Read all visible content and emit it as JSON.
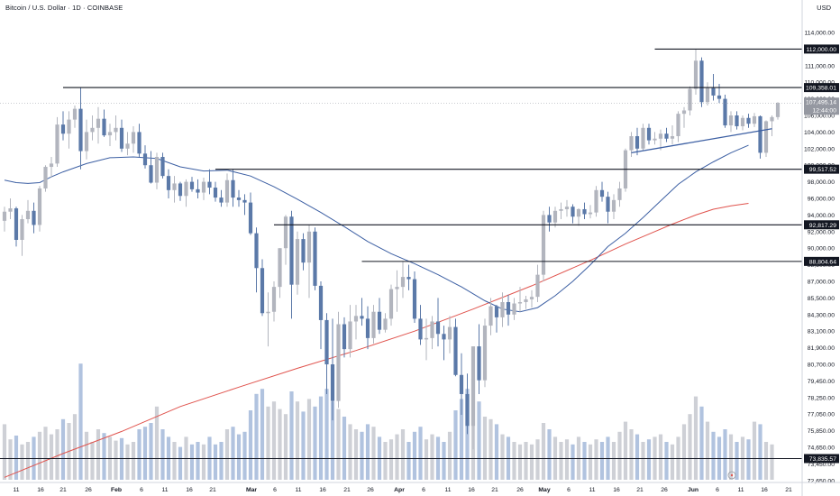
{
  "header": {
    "symbol": "Bitcoin / U.S. Dollar · 1D · COINBASE",
    "currency": "USD"
  },
  "colors": {
    "up": "#b2b5be",
    "down": "#5b79a8",
    "sma_blue": "#3c5fa3",
    "sma_red": "#e0534d",
    "level": "#131722",
    "grid_text": "#131722",
    "price_box": "#9598a1",
    "vol_up": "#c9cbd1",
    "vol_down": "#a9bcdc"
  },
  "chart_data": {
    "type": "candlestick",
    "y_axis_labels": [
      "114,000.00",
      "112,000.00",
      "111,000.00",
      "110,000.00",
      "108,000.00",
      "106,000.00",
      "104,000.00",
      "102,000.00",
      "100,000.00",
      "98,000.00",
      "96,000.00",
      "94,000.00",
      "92,000.00",
      "90,000.00",
      "88,500.00",
      "87,000.00",
      "85,500.00",
      "84,300.00",
      "83,100.00",
      "81,900.00",
      "80,700.00",
      "79,450.00",
      "78,250.00",
      "77,050.00",
      "75,850.00",
      "74,650.00",
      "73,450.00",
      "72,650.00"
    ],
    "x_axis_labels": [
      "11",
      "16",
      "21",
      "26",
      "Feb",
      "6",
      "11",
      "16",
      "21",
      "Mar",
      "6",
      "11",
      "16",
      "21",
      "26",
      "Apr",
      "6",
      "11",
      "16",
      "21",
      "26",
      "May",
      "6",
      "11",
      "16",
      "21",
      "26",
      "Jun",
      "6",
      "11",
      "16",
      "21"
    ],
    "last_price": {
      "price": "107,495.14",
      "countdown": "12:44:00"
    },
    "levels": [
      "112,000.00",
      "109,358.01",
      "99,517.52",
      "92,817.29",
      "88,804.64",
      "73,835.57"
    ],
    "candles": [
      [
        93300,
        95000,
        92000,
        94400
      ],
      [
        94400,
        96000,
        93500,
        94800
      ],
      [
        94800,
        95000,
        90200,
        91000
      ],
      [
        91000,
        94000,
        89300,
        93500
      ],
      [
        93500,
        95800,
        93000,
        94500
      ],
      [
        94500,
        95500,
        91800,
        92800
      ],
      [
        92800,
        97500,
        92000,
        97200
      ],
      [
        97200,
        100000,
        96800,
        99800
      ],
      [
        99800,
        101000,
        98500,
        100200
      ],
      [
        100200,
        105800,
        99800,
        104900
      ],
      [
        104900,
        106500,
        103000,
        103800
      ],
      [
        103800,
        106500,
        102000,
        105500
      ],
      [
        105500,
        107200,
        104500,
        106800
      ],
      [
        106800,
        109358,
        99500,
        101700
      ],
      [
        101700,
        105500,
        100700,
        104000
      ],
      [
        104000,
        106000,
        103000,
        104500
      ],
      [
        104500,
        107000,
        102600,
        105600
      ],
      [
        105600,
        106700,
        103400,
        103600
      ],
      [
        103600,
        105000,
        102300,
        104000
      ],
      [
        104000,
        106000,
        103000,
        104500
      ],
      [
        104500,
        105500,
        101600,
        102000
      ],
      [
        102000,
        104000,
        101200,
        102600
      ],
      [
        102600,
        104700,
        101500,
        104000
      ],
      [
        104000,
        105000,
        101000,
        101400
      ],
      [
        101400,
        102400,
        99600,
        100000
      ],
      [
        100000,
        101700,
        97800,
        97900
      ],
      [
        97900,
        101500,
        97100,
        101000
      ],
      [
        101000,
        101500,
        98400,
        98700
      ],
      [
        98700,
        99500,
        96000,
        97000
      ],
      [
        97000,
        98700,
        95500,
        97800
      ],
      [
        97800,
        98000,
        95700,
        96300
      ],
      [
        96300,
        98300,
        95000,
        98000
      ],
      [
        98000,
        98600,
        96800,
        97100
      ],
      [
        97100,
        98300,
        96000,
        96700
      ],
      [
        96700,
        98500,
        95800,
        98000
      ],
      [
        98000,
        99500,
        96500,
        97300
      ],
      [
        97300,
        98000,
        95600,
        96100
      ],
      [
        96100,
        97000,
        95000,
        95500
      ],
      [
        95500,
        99000,
        95000,
        98200
      ],
      [
        98200,
        99517,
        95000,
        96100
      ],
      [
        96100,
        97000,
        95000,
        95800
      ],
      [
        95800,
        96500,
        94000,
        95500
      ],
      [
        95500,
        96700,
        91600,
        91800
      ],
      [
        91800,
        92500,
        86000,
        88200
      ],
      [
        88200,
        89000,
        84200,
        84400
      ],
      [
        84400,
        86000,
        82000,
        84500
      ],
      [
        84500,
        87000,
        83800,
        86500
      ],
      [
        86500,
        90000,
        85500,
        90000
      ],
      [
        90000,
        94000,
        88500,
        93800
      ],
      [
        93800,
        94500,
        84000,
        86700
      ],
      [
        86700,
        92000,
        85800,
        91100
      ],
      [
        91100,
        91800,
        88000,
        88700
      ],
      [
        88700,
        92817,
        85500,
        92000
      ],
      [
        92000,
        92500,
        86200,
        86600
      ],
      [
        86600,
        87000,
        81800,
        83900
      ],
      [
        83900,
        84400,
        78500,
        80700
      ],
      [
        80700,
        84000,
        76600,
        78000
      ],
      [
        78000,
        84500,
        77500,
        83600
      ],
      [
        83600,
        84100,
        81200,
        81800
      ],
      [
        81800,
        85000,
        81200,
        83800
      ],
      [
        83800,
        85000,
        82500,
        84200
      ],
      [
        84200,
        85500,
        83500,
        84000
      ],
      [
        84000,
        84900,
        81800,
        82600
      ],
      [
        82600,
        85000,
        82200,
        84500
      ],
      [
        84500,
        85500,
        82900,
        83200
      ],
      [
        83200,
        84400,
        83000,
        84000
      ],
      [
        84000,
        86700,
        83500,
        86300
      ],
      [
        86300,
        88000,
        84500,
        86500
      ],
      [
        86500,
        88804,
        85500,
        87400
      ],
      [
        87400,
        88500,
        86200,
        87200
      ],
      [
        87200,
        87900,
        83700,
        84000
      ],
      [
        84000,
        85000,
        82100,
        82500
      ],
      [
        82500,
        84000,
        81000,
        82600
      ],
      [
        82600,
        84200,
        81800,
        83800
      ],
      [
        83800,
        85500,
        82000,
        82900
      ],
      [
        82900,
        83500,
        81000,
        82500
      ],
      [
        82500,
        84200,
        81500,
        83400
      ],
      [
        83400,
        84000,
        79800,
        79900
      ],
      [
        79900,
        81500,
        77000,
        78500
      ],
      [
        78500,
        80000,
        75600,
        76200
      ],
      [
        76200,
        82000,
        74500,
        82000
      ],
      [
        82000,
        83600,
        78500,
        79500
      ],
      [
        79500,
        84000,
        79000,
        83500
      ],
      [
        83500,
        85500,
        82800,
        84900
      ],
      [
        84900,
        85000,
        83000,
        84100
      ],
      [
        84100,
        86000,
        83400,
        85200
      ],
      [
        85200,
        85800,
        83500,
        84300
      ],
      [
        84300,
        85500,
        83900,
        85100
      ],
      [
        85100,
        86500,
        84500,
        85200
      ],
      [
        85200,
        85700,
        84700,
        85400
      ],
      [
        85400,
        86200,
        84800,
        85600
      ],
      [
        85600,
        88500,
        85200,
        87600
      ],
      [
        87600,
        94500,
        87000,
        94000
      ],
      [
        94000,
        95000,
        92000,
        93100
      ],
      [
        93100,
        95000,
        92500,
        94500
      ],
      [
        94500,
        95500,
        93500,
        94700
      ],
      [
        94700,
        95800,
        93800,
        95000
      ],
      [
        95000,
        95300,
        93000,
        93800
      ],
      [
        93800,
        94800,
        92700,
        94700
      ],
      [
        94700,
        95500,
        93500,
        94100
      ],
      [
        94100,
        95200,
        93600,
        94300
      ],
      [
        94300,
        97500,
        93800,
        97000
      ],
      [
        97000,
        98000,
        95600,
        96200
      ],
      [
        96200,
        96800,
        93000,
        94400
      ],
      [
        94400,
        96500,
        93500,
        95800
      ],
      [
        95800,
        98000,
        95000,
        97200
      ],
      [
        97200,
        102000,
        96800,
        101800
      ],
      [
        101800,
        104000,
        101000,
        103500
      ],
      [
        103500,
        104500,
        101200,
        102000
      ],
      [
        102000,
        105000,
        101800,
        104500
      ],
      [
        104500,
        105000,
        102500,
        103000
      ],
      [
        103000,
        104000,
        102500,
        103200
      ],
      [
        103200,
        104300,
        101800,
        103800
      ],
      [
        103800,
        104500,
        102800,
        103200
      ],
      [
        103200,
        104800,
        102500,
        103500
      ],
      [
        103500,
        106500,
        102800,
        106200
      ],
      [
        106200,
        107000,
        104500,
        106600
      ],
      [
        106600,
        109500,
        106000,
        109200
      ],
      [
        109200,
        112000,
        108500,
        111300
      ],
      [
        111300,
        111500,
        107000,
        107600
      ],
      [
        107600,
        110000,
        107200,
        109300
      ],
      [
        109300,
        110500,
        107800,
        108400
      ],
      [
        108400,
        109800,
        107500,
        108000
      ],
      [
        108000,
        108500,
        104500,
        104800
      ],
      [
        104800,
        106500,
        104000,
        106000
      ],
      [
        106000,
        106500,
        104300,
        104700
      ],
      [
        104700,
        106000,
        104200,
        105700
      ],
      [
        105700,
        106200,
        104500,
        105000
      ],
      [
        105000,
        106300,
        104600,
        105900
      ],
      [
        105900,
        106000,
        100800,
        101500
      ],
      [
        101500,
        105400,
        101000,
        105300
      ],
      [
        105300,
        106000,
        103500,
        105800
      ],
      [
        105800,
        107600,
        105500,
        107495
      ]
    ],
    "volumes": [
      0.44,
      0.32,
      0.35,
      0.28,
      0.3,
      0.34,
      0.38,
      0.42,
      0.36,
      0.4,
      0.48,
      0.45,
      0.52,
      0.92,
      0.38,
      0.3,
      0.4,
      0.37,
      0.34,
      0.31,
      0.33,
      0.28,
      0.3,
      0.4,
      0.42,
      0.45,
      0.58,
      0.4,
      0.34,
      0.3,
      0.26,
      0.34,
      0.28,
      0.3,
      0.28,
      0.34,
      0.28,
      0.3,
      0.4,
      0.42,
      0.36,
      0.38,
      0.55,
      0.68,
      0.72,
      0.58,
      0.62,
      0.56,
      0.52,
      0.7,
      0.62,
      0.54,
      0.64,
      0.58,
      0.66,
      0.72,
      0.62,
      0.56,
      0.5,
      0.44,
      0.4,
      0.38,
      0.44,
      0.42,
      0.34,
      0.3,
      0.32,
      0.36,
      0.4,
      0.3,
      0.38,
      0.42,
      0.32,
      0.36,
      0.34,
      0.3,
      0.38,
      0.55,
      0.64,
      0.72,
      0.8,
      0.62,
      0.5,
      0.48,
      0.44,
      0.36,
      0.34,
      0.3,
      0.28,
      0.3,
      0.28,
      0.32,
      0.45,
      0.4,
      0.34,
      0.3,
      0.32,
      0.28,
      0.34,
      0.3,
      0.28,
      0.32,
      0.3,
      0.34,
      0.3,
      0.38,
      0.46,
      0.4,
      0.36,
      0.3,
      0.32,
      0.34,
      0.36,
      0.3,
      0.28,
      0.34,
      0.44,
      0.52,
      0.66,
      0.58,
      0.46,
      0.38,
      0.34,
      0.4,
      0.36,
      0.3,
      0.34,
      0.32,
      0.46,
      0.44,
      0.3,
      0.28
    ],
    "sma50": [
      [
        0,
        98200
      ],
      [
        2,
        97900
      ],
      [
        4,
        97800
      ],
      [
        6,
        97900
      ],
      [
        8,
        98600
      ],
      [
        10,
        99200
      ],
      [
        14,
        100200
      ],
      [
        18,
        100900
      ],
      [
        22,
        101000
      ],
      [
        26,
        100800
      ],
      [
        30,
        99800
      ],
      [
        34,
        99300
      ],
      [
        38,
        99400
      ],
      [
        42,
        98700
      ],
      [
        46,
        97400
      ],
      [
        50,
        95900
      ],
      [
        54,
        94300
      ],
      [
        58,
        92600
      ],
      [
        62,
        90800
      ],
      [
        66,
        89500
      ],
      [
        70,
        88600
      ],
      [
        74,
        87600
      ],
      [
        78,
        86500
      ],
      [
        82,
        85300
      ],
      [
        85,
        84700
      ],
      [
        88,
        84500
      ],
      [
        91,
        84800
      ],
      [
        94,
        85700
      ],
      [
        97,
        87000
      ],
      [
        100,
        88500
      ],
      [
        103,
        90200
      ],
      [
        106,
        91800
      ],
      [
        109,
        93700
      ],
      [
        112,
        95700
      ],
      [
        115,
        97700
      ],
      [
        118,
        99200
      ],
      [
        121,
        100400
      ],
      [
        124,
        101500
      ],
      [
        127,
        102400
      ]
    ],
    "sma200": [
      [
        0,
        72800
      ],
      [
        10,
        74200
      ],
      [
        20,
        75800
      ],
      [
        30,
        77600
      ],
      [
        40,
        79000
      ],
      [
        50,
        80400
      ],
      [
        60,
        81700
      ],
      [
        70,
        83100
      ],
      [
        80,
        84700
      ],
      [
        90,
        86600
      ],
      [
        100,
        88900
      ],
      [
        106,
        90500
      ],
      [
        110,
        91700
      ],
      [
        114,
        92900
      ],
      [
        118,
        94000
      ],
      [
        121,
        94700
      ],
      [
        124,
        95100
      ],
      [
        127,
        95400
      ]
    ],
    "trendline": [
      [
        107,
        101500
      ],
      [
        131,
        104400
      ]
    ],
    "swing_lines": [
      [
        53,
        96300
      ],
      [
        126,
        101000
      ]
    ]
  }
}
